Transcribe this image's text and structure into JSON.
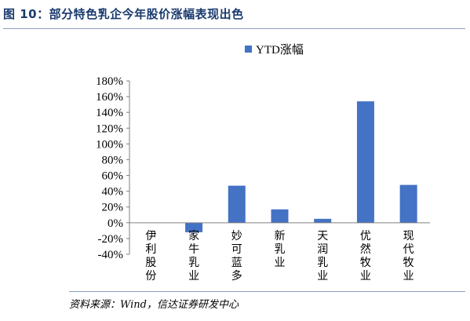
{
  "title": "图 10：部分特色乳企今年股价涨幅表现出色",
  "source": "资料来源：Wind，信达证券研发中心",
  "colors": {
    "bar": "#4472c4",
    "title": "#1a3a6e"
  },
  "chart_data": {
    "type": "bar",
    "categories": [
      "伊利股份",
      "家牛乳业",
      "妙可蓝多",
      "新乳业",
      "天润乳业",
      "优然牧业",
      "现代牧业"
    ],
    "series": [
      {
        "name": "YTD涨幅",
        "values": [
          0,
          -12,
          47,
          17,
          5,
          154,
          48
        ]
      }
    ],
    "unit": "%",
    "ylim": [
      -40,
      180
    ],
    "yticks": [
      -40,
      -20,
      0,
      20,
      40,
      60,
      80,
      100,
      120,
      140,
      160,
      180
    ],
    "ytick_labels": [
      "-40%",
      "-20%",
      "0%",
      "20%",
      "40%",
      "60%",
      "80%",
      "100%",
      "120%",
      "140%",
      "160%",
      "180%"
    ],
    "legend_position": "top-center",
    "grid": false,
    "xlabel": "",
    "ylabel": ""
  }
}
